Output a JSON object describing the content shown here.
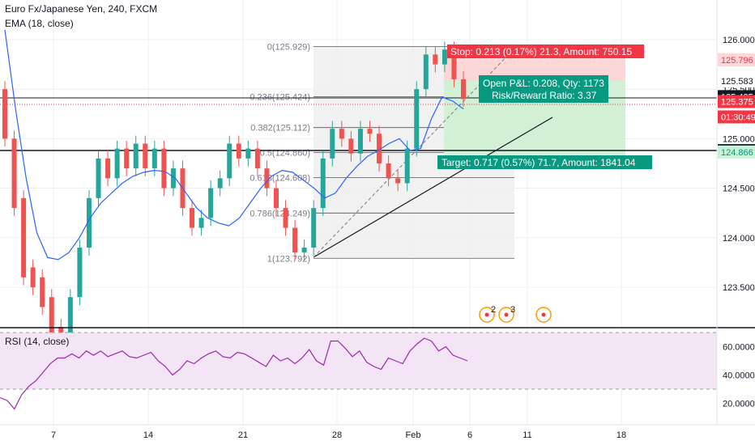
{
  "header": {
    "title": "Euro Fx/Japanese Yen, 240, FXCM",
    "indicator": "EMA (18, close)"
  },
  "rsi_title": "RSI (14, close)",
  "colors": {
    "up": "#26a69a",
    "down": "#ef5350",
    "ema": "#2962ff",
    "rsi": "#9c27b0",
    "stop": "#f23645",
    "target": "#089981",
    "grid": "#e0e3eb",
    "fib_zone": "#eeeeee",
    "rsi_band": "#f3e5f5"
  },
  "position": {
    "stop_label": "Stop: 0.213 (0.17%) 21.3, Amount: 750.15",
    "pnl_label": "Open P&L: 0.208, Qty: 1173",
    "rr_label": "Risk/Reward Ratio: 3.37",
    "target_label": "Target: 0.717 (0.57%) 71.7, Amount: 1841.04",
    "entry": 125.583,
    "stop": 125.796,
    "target": 124.866
  },
  "fib_labels": [
    {
      "label": "0(125.929)",
      "value": 125.929
    },
    {
      "label": "0.236(125.424)",
      "value": 125.424
    },
    {
      "label": "0.382(125.112)",
      "value": 125.112
    },
    {
      "label": "0.5(124.860)",
      "value": 124.86
    },
    {
      "label": "0.618(124.608)",
      "value": 124.608
    },
    {
      "label": "0.786(124.249)",
      "value": 124.249
    },
    {
      "label": "1(123.792)",
      "value": 123.792
    }
  ],
  "price_tags": [
    {
      "text": "125.796",
      "value": 125.796,
      "bg": "#ffd7d7",
      "fg": "#f23645"
    },
    {
      "text": "125.583",
      "value": 125.583,
      "bg": "#ffffff",
      "fg": "#131722"
    },
    {
      "text": "125.425",
      "value": 125.425,
      "bg": "#131722",
      "fg": "#ffffff"
    },
    {
      "text": "125.375",
      "value": 125.375,
      "bg": "#f23645",
      "fg": "#ffffff"
    },
    {
      "text": "01:30:49",
      "value": 125.22,
      "bg": "#f23645",
      "fg": "#ffffff"
    },
    {
      "text": "124.880",
      "value": 124.88,
      "bg": "#131722",
      "fg": "#ffffff"
    },
    {
      "text": "124.866",
      "value": 124.866,
      "bg": "#c8f2d8",
      "fg": "#089981"
    }
  ],
  "event_labels": [
    "2",
    "3"
  ],
  "chart_data": {
    "type": "candlestick",
    "title": "Euro Fx/Japanese Yen, 240, FXCM",
    "ylim": [
      123.0,
      126.2
    ],
    "y_ticks": [
      {
        "v": 126.0,
        "t": "126.000"
      },
      {
        "v": 125.5,
        "t": "125.500"
      },
      {
        "v": 125.0,
        "t": "125.000"
      },
      {
        "v": 124.5,
        "t": "124.500"
      },
      {
        "v": 124.0,
        "t": "124.000"
      },
      {
        "v": 123.5,
        "t": "123.500"
      }
    ],
    "x_ticks": [
      "7",
      "14",
      "21",
      "28",
      "Feb",
      "6",
      "11",
      "18"
    ],
    "series": [
      {
        "name": "EMA (18, close)",
        "values": [
          126.1,
          125.3,
          124.6,
          124.05,
          123.8,
          123.78,
          123.85,
          124.0,
          124.2,
          124.35,
          124.45,
          124.55,
          124.62,
          124.66,
          124.68,
          124.67,
          124.6,
          124.45,
          124.3,
          124.2,
          124.15,
          124.12,
          124.2,
          124.35,
          124.5,
          124.62,
          124.68,
          124.66,
          124.58,
          124.5,
          124.4,
          124.45,
          124.6,
          124.72,
          124.82,
          124.88,
          124.95,
          125.0,
          124.88,
          124.9,
          125.2,
          125.42,
          125.38,
          125.3
        ]
      }
    ],
    "candles": [
      [
        125.5,
        125.0
      ],
      [
        125.0,
        124.3
      ],
      [
        124.4,
        123.6
      ],
      [
        123.7,
        123.5
      ],
      [
        123.6,
        123.3
      ],
      [
        123.4,
        123.0
      ],
      [
        123.1,
        122.9
      ],
      [
        123.0,
        123.4
      ],
      [
        123.4,
        123.9
      ],
      [
        123.9,
        124.4
      ],
      [
        124.4,
        124.8
      ],
      [
        124.8,
        124.6
      ],
      [
        124.6,
        124.9
      ],
      [
        124.9,
        124.7
      ],
      [
        124.7,
        124.95
      ],
      [
        124.95,
        124.7
      ],
      [
        124.7,
        124.9
      ],
      [
        124.9,
        124.5
      ],
      [
        124.5,
        124.7
      ],
      [
        124.7,
        124.3
      ],
      [
        124.3,
        124.1
      ],
      [
        124.1,
        124.2
      ],
      [
        124.2,
        124.5
      ],
      [
        124.5,
        124.6
      ],
      [
        124.6,
        124.95
      ],
      [
        124.95,
        124.8
      ],
      [
        124.8,
        124.9
      ],
      [
        124.9,
        124.7
      ],
      [
        124.7,
        124.5
      ],
      [
        124.5,
        124.3
      ],
      [
        124.3,
        124.1
      ],
      [
        124.1,
        123.85
      ],
      [
        123.85,
        123.9
      ],
      [
        123.9,
        124.3
      ],
      [
        124.3,
        124.8
      ],
      [
        124.8,
        125.1
      ],
      [
        125.1,
        125.0
      ],
      [
        125.0,
        124.85
      ],
      [
        124.85,
        125.1
      ],
      [
        125.1,
        125.05
      ],
      [
        125.05,
        124.75
      ],
      [
        124.75,
        124.6
      ],
      [
        124.6,
        124.55
      ],
      [
        124.55,
        124.9
      ],
      [
        124.9,
        125.5
      ],
      [
        125.5,
        125.85
      ],
      [
        125.85,
        125.75
      ],
      [
        125.75,
        125.9
      ],
      [
        125.9,
        125.6
      ],
      [
        125.6,
        125.4
      ]
    ],
    "rsi": {
      "name": "RSI (14, close)",
      "ylim": [
        10,
        72
      ],
      "y_ticks": [
        {
          "v": 60,
          "t": "60.0000"
        },
        {
          "v": 40,
          "t": "40.0000"
        },
        {
          "v": 20,
          "t": "20.0000"
        }
      ],
      "bands": [
        70,
        30
      ],
      "values": [
        24,
        22,
        16,
        26,
        32,
        36,
        42,
        48,
        52,
        52,
        55,
        52,
        57,
        54,
        57,
        53,
        55,
        57,
        53,
        52,
        54,
        56,
        50,
        46,
        40,
        44,
        50,
        48,
        52,
        55,
        57,
        53,
        52,
        56,
        55,
        52,
        49,
        46,
        54,
        50,
        52,
        48,
        52,
        58,
        50,
        47,
        64,
        64,
        59,
        53,
        57,
        49,
        46,
        44,
        52,
        50,
        48,
        57,
        62,
        66,
        64,
        57,
        60,
        54,
        52,
        50
      ]
    }
  }
}
